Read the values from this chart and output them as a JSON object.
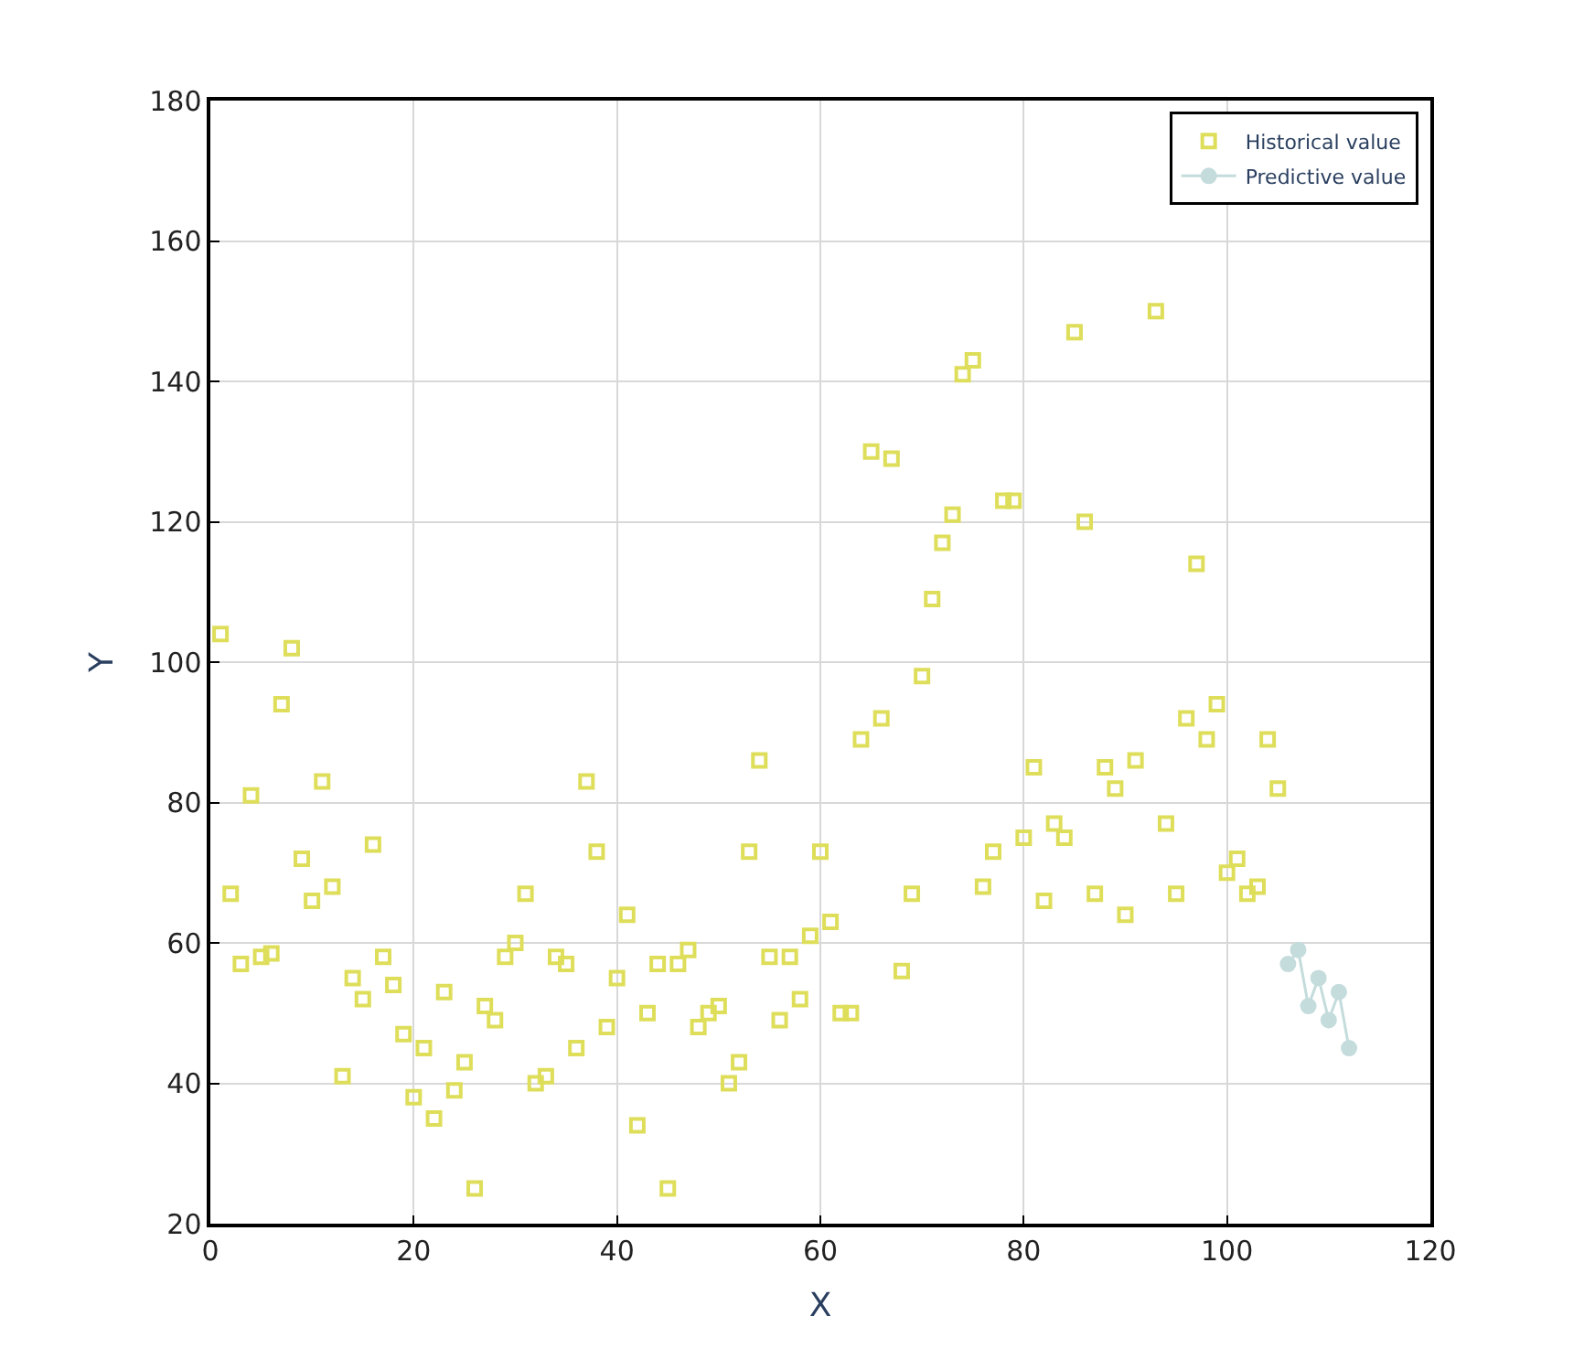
{
  "chart_data": {
    "type": "scatter",
    "xlabel": "X",
    "ylabel": "Y",
    "xlim": [
      0,
      120
    ],
    "ylim": [
      20,
      180
    ],
    "xticks": [
      0,
      20,
      40,
      60,
      80,
      100,
      120
    ],
    "yticks": [
      20,
      40,
      60,
      80,
      100,
      120,
      140,
      160,
      180
    ],
    "grid": true,
    "legend": "top right",
    "series": [
      {
        "name": "Historical value",
        "color": "#dede5a",
        "marker": "square",
        "line_style": "none",
        "x": [
          1,
          2,
          3,
          4,
          5,
          6,
          7,
          8,
          9,
          10,
          11,
          12,
          13,
          14,
          15,
          16,
          17,
          18,
          19,
          20,
          21,
          22,
          23,
          24,
          25,
          26,
          27,
          28,
          29,
          30,
          31,
          32,
          33,
          34,
          35,
          36,
          37,
          38,
          39,
          40,
          41,
          42,
          43,
          44,
          45,
          46,
          47,
          48,
          49,
          50,
          51,
          52,
          53,
          54,
          55,
          56,
          57,
          58,
          59,
          60,
          61,
          62,
          63,
          64,
          65,
          66,
          67,
          68,
          69,
          70,
          71,
          72,
          73,
          74,
          75,
          76,
          77,
          78,
          79,
          80,
          81,
          82,
          83,
          84,
          85,
          86,
          87,
          88,
          89,
          90,
          91,
          93,
          94,
          95,
          96,
          97,
          98,
          99,
          100,
          101,
          102,
          103,
          104,
          105
        ],
        "values": [
          104,
          67,
          57,
          81,
          58,
          58.5,
          94,
          102,
          72,
          66,
          83,
          68,
          41,
          55,
          52,
          74,
          58,
          54,
          47,
          38,
          45,
          35,
          53,
          39,
          43,
          25,
          51,
          49,
          58,
          60,
          67,
          40,
          41,
          58,
          57,
          45,
          83,
          73,
          48,
          55,
          64,
          34,
          50,
          57,
          25,
          57,
          59,
          48,
          50,
          51,
          40,
          43,
          73,
          86,
          58,
          49,
          58,
          52,
          61,
          73,
          63,
          50,
          50,
          89,
          130,
          92,
          129,
          56,
          67,
          98,
          109,
          117,
          121,
          141,
          143,
          68,
          73,
          123,
          123,
          75,
          85,
          66,
          77,
          75,
          147,
          120,
          67,
          85,
          82,
          64,
          86,
          150,
          77,
          67,
          92,
          114,
          89,
          94,
          70,
          72,
          67,
          68,
          89,
          82
        ]
      },
      {
        "name": "Predictive value",
        "type": "line",
        "color": "#c5dcdc",
        "marker": "circle",
        "line_style": "solid",
        "x": [
          106,
          107,
          108,
          109,
          110,
          111,
          112
        ],
        "values": [
          57,
          59,
          51,
          55,
          49,
          53,
          45
        ]
      }
    ]
  }
}
